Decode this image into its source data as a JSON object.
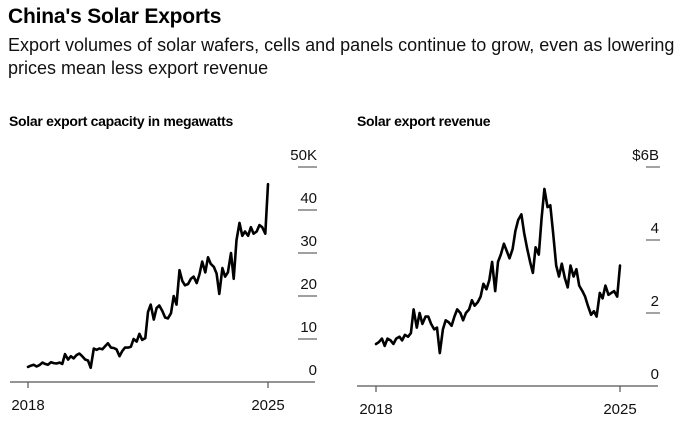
{
  "header": {
    "title": "China's Solar Exports",
    "subtitle": "Export volumes of solar wafers, cells and panels continue to grow, even as lowering prices mean less export revenue"
  },
  "chart_data": [
    {
      "type": "line",
      "title": "Solar export capacity in megawatts",
      "xlabel": "",
      "ylabel": "",
      "x_tick_labels": [
        "2018",
        "2025"
      ],
      "y_tick_labels": [
        "0",
        "10",
        "20",
        "30",
        "40",
        "50K"
      ],
      "y_ticks": [
        0,
        10,
        20,
        30,
        40,
        50
      ],
      "ylim": [
        0,
        50
      ],
      "xlim": [
        2018.0,
        2025.35
      ],
      "grid": false,
      "line_color": "#000000",
      "series": [
        {
          "name": "Solar export capacity (K MW)",
          "x": [
            2018.0,
            2018.08,
            2018.17,
            2018.25,
            2018.33,
            2018.42,
            2018.5,
            2018.58,
            2018.67,
            2018.75,
            2018.83,
            2018.92,
            2019.0,
            2019.08,
            2019.17,
            2019.25,
            2019.33,
            2019.42,
            2019.5,
            2019.58,
            2019.67,
            2019.75,
            2019.83,
            2019.92,
            2020.0,
            2020.08,
            2020.17,
            2020.25,
            2020.33,
            2020.42,
            2020.5,
            2020.58,
            2020.67,
            2020.75,
            2020.83,
            2020.92,
            2021.0,
            2021.08,
            2021.17,
            2021.25,
            2021.33,
            2021.42,
            2021.5,
            2021.58,
            2021.67,
            2021.75,
            2021.83,
            2021.92,
            2022.0,
            2022.08,
            2022.17,
            2022.25,
            2022.33,
            2022.42,
            2022.5,
            2022.58,
            2022.67,
            2022.75,
            2022.83,
            2022.92,
            2023.0,
            2023.08,
            2023.17,
            2023.25,
            2023.33,
            2023.42,
            2023.5,
            2023.58,
            2023.67,
            2023.75,
            2023.83,
            2023.92,
            2024.0,
            2024.08,
            2024.17,
            2024.25,
            2024.33,
            2024.42,
            2024.5,
            2024.58,
            2024.67,
            2024.75,
            2024.83,
            2024.92,
            2025.0
          ],
          "values": [
            3.5,
            3.8,
            4.0,
            3.6,
            3.9,
            4.5,
            4.2,
            4.0,
            4.6,
            4.4,
            4.3,
            4.5,
            4.2,
            6.5,
            5.2,
            6.0,
            5.5,
            6.3,
            6.6,
            6.0,
            5.2,
            5.0,
            3.3,
            7.8,
            7.5,
            7.8,
            7.6,
            8.3,
            9.0,
            8.0,
            7.9,
            7.6,
            6.0,
            7.2,
            8.0,
            8.0,
            8.2,
            10.0,
            9.4,
            11.2,
            9.8,
            10.2,
            16.3,
            18.0,
            14.5,
            17.2,
            17.8,
            16.5,
            15.0,
            14.8,
            16.0,
            20.0,
            18.0,
            26.0,
            23.5,
            22.5,
            22.8,
            24.0,
            24.5,
            23.0,
            25.0,
            28.0,
            25.5,
            29.0,
            27.5,
            26.8,
            25.2,
            20.5,
            26.5,
            24.5,
            25.5,
            30.0,
            24.0,
            33.0,
            37.0,
            34.0,
            35.0,
            34.0,
            36.0,
            34.5,
            35.0,
            36.5,
            36.0,
            34.5,
            46.0
          ]
        }
      ]
    },
    {
      "type": "line",
      "title": "Solar export revenue",
      "xlabel": "",
      "ylabel": "",
      "x_tick_labels": [
        "2018",
        "2025"
      ],
      "y_tick_labels": [
        "0",
        "2",
        "4",
        "$6B"
      ],
      "y_ticks": [
        0,
        2,
        4,
        6
      ],
      "ylim": [
        0,
        6
      ],
      "xlim": [
        2018.0,
        2025.3
      ],
      "grid": false,
      "line_color": "#000000",
      "series": [
        {
          "name": "Solar export revenue ($B)",
          "x": [
            2018.0,
            2018.08,
            2018.17,
            2018.25,
            2018.33,
            2018.42,
            2018.5,
            2018.58,
            2018.67,
            2018.75,
            2018.83,
            2018.92,
            2019.0,
            2019.08,
            2019.17,
            2019.25,
            2019.33,
            2019.42,
            2019.5,
            2019.58,
            2019.67,
            2019.75,
            2019.83,
            2019.92,
            2020.0,
            2020.08,
            2020.17,
            2020.25,
            2020.33,
            2020.42,
            2020.5,
            2020.58,
            2020.67,
            2020.75,
            2020.83,
            2020.92,
            2021.0,
            2021.08,
            2021.17,
            2021.25,
            2021.33,
            2021.42,
            2021.5,
            2021.58,
            2021.67,
            2021.75,
            2021.83,
            2021.92,
            2022.0,
            2022.08,
            2022.17,
            2022.25,
            2022.33,
            2022.42,
            2022.5,
            2022.58,
            2022.67,
            2022.75,
            2022.83,
            2022.92,
            2023.0,
            2023.08,
            2023.17,
            2023.25,
            2023.33,
            2023.42,
            2023.5,
            2023.58,
            2023.67,
            2023.75,
            2023.83,
            2023.92,
            2024.0,
            2024.08,
            2024.17,
            2024.25,
            2024.33,
            2024.42,
            2024.5,
            2024.58,
            2024.67,
            2024.75,
            2024.83,
            2024.92,
            2025.0
          ],
          "values": [
            1.15,
            1.2,
            1.3,
            1.1,
            1.3,
            1.25,
            1.15,
            1.3,
            1.35,
            1.25,
            1.4,
            1.35,
            1.45,
            2.1,
            1.6,
            2.0,
            1.7,
            1.9,
            1.9,
            1.7,
            1.55,
            1.6,
            0.9,
            1.55,
            1.8,
            1.75,
            1.65,
            1.9,
            2.1,
            2.0,
            1.8,
            2.0,
            2.1,
            2.35,
            2.2,
            2.3,
            2.45,
            2.8,
            2.65,
            2.9,
            3.4,
            2.6,
            3.4,
            3.6,
            3.9,
            3.7,
            3.5,
            3.75,
            4.25,
            4.55,
            4.7,
            4.2,
            3.8,
            3.4,
            3.1,
            3.8,
            3.6,
            4.6,
            5.4,
            4.9,
            4.95,
            4.2,
            3.3,
            3.0,
            3.35,
            2.95,
            2.7,
            3.3,
            3.0,
            3.2,
            2.75,
            2.6,
            2.45,
            2.2,
            1.95,
            2.05,
            1.9,
            2.55,
            2.4,
            2.75,
            2.5,
            2.55,
            2.6,
            2.45,
            3.3
          ]
        }
      ]
    }
  ]
}
